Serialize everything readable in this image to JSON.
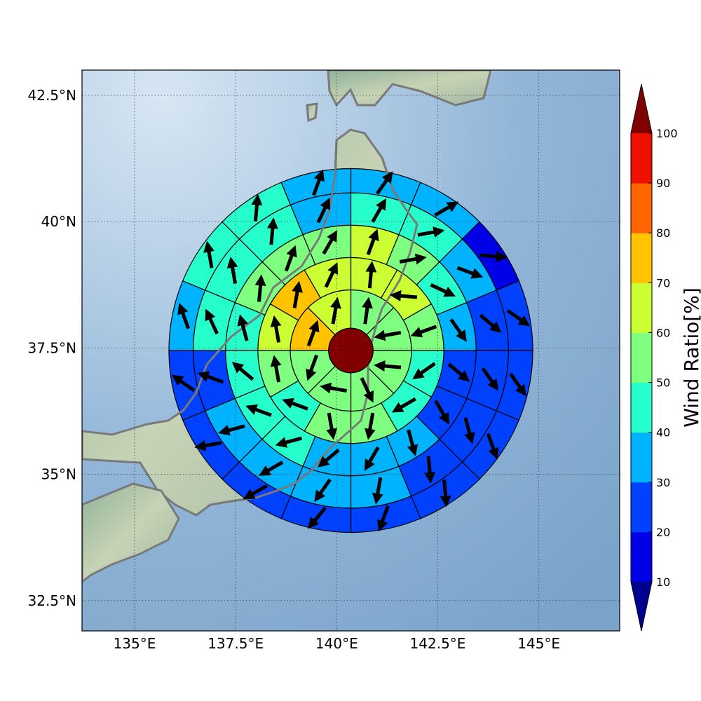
{
  "map": {
    "lon_range": [
      133.7,
      147.0
    ],
    "lat_range": [
      31.9,
      43.0
    ],
    "center": {
      "lon": 140.35,
      "lat": 37.45
    },
    "ring_radii_deg": [
      0.55,
      1.5,
      2.3,
      3.1,
      3.9,
      4.5
    ],
    "lon_ticks": [
      135,
      137.5,
      140,
      142.5,
      145
    ],
    "lat_ticks": [
      32.5,
      35,
      37.5,
      40,
      42.5
    ],
    "lon_tick_labels": [
      "135°E",
      "137.5°E",
      "140°E",
      "142.5°E",
      "145°E"
    ],
    "lat_tick_labels": [
      "32.5°N",
      "35°N",
      "37.5°N",
      "40°N",
      "42.5°N"
    ],
    "grid_style": "dotted",
    "coastline_color": "#7a7a7a",
    "ocean_color": "#8db3d6",
    "center_disk_value": 100
  },
  "colorbar": {
    "title": "Wind Ratio[%]",
    "tick_labels": [
      "10",
      "20",
      "30",
      "40",
      "50",
      "60",
      "70",
      "80",
      "90",
      "100"
    ],
    "bins": [
      {
        "min": 0,
        "max": 10,
        "color": "#00008f"
      },
      {
        "min": 10,
        "max": 20,
        "color": "#0000e6"
      },
      {
        "min": 20,
        "max": 30,
        "color": "#0040ff"
      },
      {
        "min": 30,
        "max": 40,
        "color": "#00b3ff"
      },
      {
        "min": 40,
        "max": 50,
        "color": "#26ffcc"
      },
      {
        "min": 50,
        "max": 60,
        "color": "#7fff7f"
      },
      {
        "min": 60,
        "max": 70,
        "color": "#ccff33"
      },
      {
        "min": 70,
        "max": 80,
        "color": "#ffc300"
      },
      {
        "min": 80,
        "max": 90,
        "color": "#ff6600"
      },
      {
        "min": 90,
        "max": 100,
        "color": "#ee1100"
      },
      {
        "min": 100,
        "max": 110,
        "color": "#800000"
      }
    ],
    "extend": "both"
  },
  "chart_data": {
    "type": "heatmap",
    "description_of_layout": "polar grid of sectors centered on a point; each cell colored by wind ratio and carrying a wind-direction arrow",
    "rings": [
      {
        "ring": 1,
        "sectors": 8,
        "start_bearing": 0,
        "values": [
          55,
          55,
          55,
          55,
          55,
          55,
          75,
          65
        ],
        "arrow_dir": [
          8,
          260,
          275,
          155,
          280,
          200,
          20,
          10
        ]
      },
      {
        "ring": 2,
        "sectors": 12,
        "start_bearing": 0,
        "values": [
          65,
          65,
          55,
          45,
          45,
          55,
          55,
          45,
          55,
          65,
          75,
          65
        ],
        "arrow_dir": [
          5,
          275,
          250,
          235,
          240,
          190,
          170,
          290,
          350,
          350,
          10,
          25
        ],
        "reversed_dir": true
      },
      {
        "ring": 3,
        "sectors": 16,
        "start_bearing": 0,
        "values": [
          65,
          55,
          45,
          35,
          25,
          25,
          35,
          35,
          35,
          45,
          45,
          45,
          45,
          55,
          55,
          55
        ],
        "arrow_dir": [
          20,
          80,
          115,
          145,
          130,
          150,
          165,
          210,
          230,
          255,
          290,
          310,
          345,
          5,
          20,
          30
        ]
      },
      {
        "ring": 4,
        "sectors": 16,
        "start_bearing": 0,
        "values": [
          45,
          45,
          35,
          25,
          25,
          25,
          25,
          35,
          35,
          35,
          35,
          25,
          45,
          45,
          45,
          35
        ],
        "arrow_dir": [
          30,
          80,
          110,
          130,
          145,
          165,
          175,
          190,
          215,
          240,
          255,
          290,
          335,
          350,
          5,
          25
        ]
      },
      {
        "ring": 5,
        "sectors": 16,
        "start_bearing": 0,
        "values": [
          35,
          35,
          15,
          25,
          25,
          25,
          25,
          25,
          25,
          25,
          25,
          25,
          35,
          45,
          45,
          35
        ],
        "arrow_dir": [
          35,
          60,
          95,
          125,
          145,
          160,
          175,
          200,
          220,
          240,
          260,
          305,
          340,
          350,
          5,
          20
        ]
      }
    ]
  }
}
